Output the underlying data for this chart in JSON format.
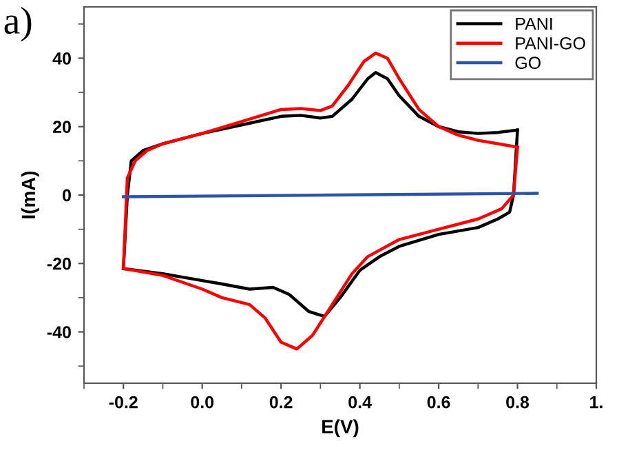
{
  "chart_data": {
    "type": "line",
    "xlabel": "E(V)",
    "ylabel": "I(mA)",
    "annotations": [
      "a)"
    ],
    "xlim": [
      -0.3,
      1.0
    ],
    "ylim": [
      -55,
      55
    ],
    "xticks": [
      {
        "value": -0.3,
        "label": null
      },
      {
        "value": -0.2,
        "label": "-0.2"
      },
      {
        "value": -0.1,
        "label": null
      },
      {
        "value": 0.0,
        "label": "0.0"
      },
      {
        "value": 0.1,
        "label": null
      },
      {
        "value": 0.2,
        "label": "0.2"
      },
      {
        "value": 0.3,
        "label": null
      },
      {
        "value": 0.4,
        "label": "0.4"
      },
      {
        "value": 0.5,
        "label": null
      },
      {
        "value": 0.6,
        "label": "0.6"
      },
      {
        "value": 0.7,
        "label": null
      },
      {
        "value": 0.8,
        "label": "0.8"
      },
      {
        "value": 0.9,
        "label": null
      },
      {
        "value": 1.0,
        "label": "1."
      }
    ],
    "yticks": [
      {
        "value": -50,
        "label": null
      },
      {
        "value": -40,
        "label": "-40"
      },
      {
        "value": -30,
        "label": null
      },
      {
        "value": -20,
        "label": "-20"
      },
      {
        "value": -10,
        "label": null
      },
      {
        "value": 0,
        "label": "0"
      },
      {
        "value": 10,
        "label": null
      },
      {
        "value": 20,
        "label": "20"
      },
      {
        "value": 30,
        "label": null
      },
      {
        "value": 40,
        "label": "40"
      },
      {
        "value": 50,
        "label": null
      }
    ],
    "grid": false,
    "legend": "top right",
    "marker": "none",
    "line_style": "solid",
    "series": [
      {
        "name": "PANI",
        "color": "#000000",
        "x": [
          -0.2,
          -0.19,
          -0.18,
          -0.15,
          -0.1,
          0,
          0.1,
          0.2,
          0.25,
          0.3,
          0.33,
          0.38,
          0.42,
          0.44,
          0.47,
          0.5,
          0.55,
          0.6,
          0.65,
          0.7,
          0.75,
          0.8
        ],
        "values": [
          -21.5,
          0,
          10,
          13,
          15,
          18,
          20.5,
          23,
          23.3,
          22.5,
          23,
          28,
          34,
          35.8,
          34,
          29,
          23,
          20,
          18.5,
          18,
          18.3,
          19
        ]
      },
      {
        "color": "#000000",
        "x": [
          0.8,
          0.79,
          0.78,
          0.75,
          0.7,
          0.6,
          0.5,
          0.45,
          0.4,
          0.35,
          0.31,
          0.27,
          0.22,
          0.18,
          0.12,
          0.05,
          0,
          -0.1,
          -0.2
        ],
        "values": [
          19,
          0,
          -5,
          -7,
          -9.5,
          -11.5,
          -15,
          -18,
          -22,
          -30,
          -35.5,
          -34,
          -29,
          -27,
          -27.5,
          -26,
          -25,
          -23,
          -21.5
        ]
      },
      {
        "name": "PANI-GO",
        "color": "#ff0000",
        "x": [
          -0.2,
          -0.19,
          -0.17,
          -0.14,
          -0.1,
          0,
          0.1,
          0.2,
          0.25,
          0.3,
          0.33,
          0.37,
          0.41,
          0.44,
          0.47,
          0.5,
          0.55,
          0.6,
          0.65,
          0.7,
          0.75,
          0.8
        ],
        "values": [
          -21.5,
          5,
          10,
          13,
          15,
          18,
          21.5,
          25,
          25.3,
          24.7,
          26,
          32,
          39,
          41.5,
          40,
          34,
          25,
          20,
          17.5,
          16,
          15,
          14
        ]
      },
      {
        "color": "#ff0000",
        "x": [
          0.8,
          0.79,
          0.76,
          0.7,
          0.6,
          0.5,
          0.42,
          0.38,
          0.33,
          0.28,
          0.24,
          0.2,
          0.16,
          0.12,
          0.05,
          0,
          -0.1,
          -0.2
        ],
        "values": [
          14,
          0,
          -4,
          -7,
          -10,
          -13,
          -18,
          -23,
          -32,
          -41,
          -45,
          -43,
          -36,
          -32,
          -30,
          -27.5,
          -23.5,
          -21.5
        ]
      },
      {
        "name": "GO",
        "color": "#2b55a8",
        "x": [
          -0.2,
          0.85
        ],
        "values": [
          -0.5,
          0.5
        ]
      }
    ]
  }
}
